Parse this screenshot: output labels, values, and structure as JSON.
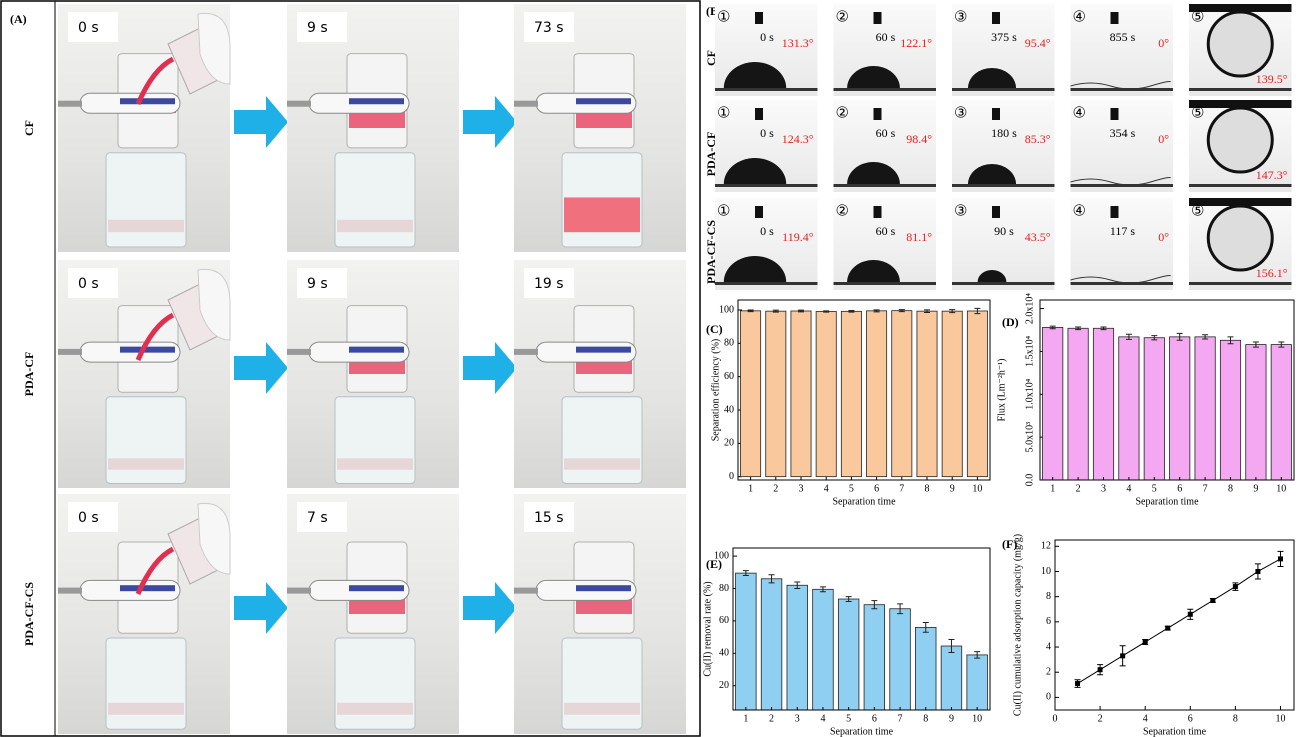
{
  "panel_a": {
    "label": "(A)",
    "rows": [
      {
        "name": "CF",
        "times": [
          "0 s",
          "9 s",
          "73 s"
        ]
      },
      {
        "name": "PDA-CF",
        "times": [
          "0 s",
          "9 s",
          "19 s"
        ]
      },
      {
        "name": "PDA-CF-CS",
        "times": [
          "0 s",
          "7 s",
          "15 s"
        ]
      }
    ]
  },
  "panel_b": {
    "label": "(B)",
    "rows": [
      {
        "name": "CF",
        "cells": [
          {
            "step": "①",
            "time": "0 s",
            "angle": "131.3°"
          },
          {
            "step": "②",
            "time": "60 s",
            "angle": "122.1°"
          },
          {
            "step": "③",
            "time": "375 s",
            "angle": "95.4°"
          },
          {
            "step": "④",
            "time": "855 s",
            "angle": "0°"
          },
          {
            "step": "⑤",
            "angle": "139.5°"
          }
        ]
      },
      {
        "name": "PDA-CF",
        "cells": [
          {
            "step": "①",
            "time": "0 s",
            "angle": "124.3°"
          },
          {
            "step": "②",
            "time": "60 s",
            "angle": "98.4°"
          },
          {
            "step": "③",
            "time": "180 s",
            "angle": "85.3°"
          },
          {
            "step": "④",
            "time": "354 s",
            "angle": "0°"
          },
          {
            "step": "⑤",
            "angle": "147.3°"
          }
        ]
      },
      {
        "name": "PDA-CF-CS",
        "cells": [
          {
            "step": "①",
            "time": "0 s",
            "angle": "119.4°"
          },
          {
            "step": "②",
            "time": "60 s",
            "angle": "81.1°"
          },
          {
            "step": "③",
            "time": "90 s",
            "angle": "43.5°"
          },
          {
            "step": "④",
            "time": "117 s",
            "angle": "0°"
          },
          {
            "step": "⑤",
            "angle": "156.1°"
          }
        ]
      }
    ]
  },
  "chart_data": [
    {
      "type": "bar",
      "label": "(C)",
      "x_label": "Separation time",
      "y_label": "Separation efficiency (%)",
      "categories": [
        "1",
        "2",
        "3",
        "4",
        "5",
        "6",
        "7",
        "8",
        "9",
        "10"
      ],
      "values": [
        99.5,
        99.3,
        99.4,
        99.1,
        99.2,
        99.5,
        99.6,
        99.3,
        99.3,
        99.4
      ],
      "errors": [
        0.5,
        0.6,
        0.5,
        0.4,
        0.5,
        0.6,
        0.6,
        0.8,
        0.9,
        1.6
      ],
      "color": "#f9c89c",
      "ylim": [
        -2,
        106
      ],
      "yticks": [
        0,
        20,
        40,
        60,
        80,
        100
      ]
    },
    {
      "type": "bar",
      "label": "(D)",
      "x_label": "Separation time",
      "y_label": "Flux (Lm⁻²h⁻¹)",
      "categories": [
        "1",
        "2",
        "3",
        "4",
        "5",
        "6",
        "7",
        "8",
        "9",
        "10"
      ],
      "values": [
        17800,
        17700,
        17700,
        16700,
        16600,
        16700,
        16700,
        16300,
        15800,
        15800
      ],
      "errors": [
        150,
        150,
        150,
        300,
        250,
        400,
        250,
        400,
        300,
        300
      ],
      "color": "#f5a8f2",
      "ylim": [
        0,
        21000
      ],
      "yticks": [
        {
          "value": 0,
          "label": "0.0"
        },
        {
          "value": 5000,
          "label": "5.0x10³"
        },
        {
          "value": 10000,
          "label": "1.0x10⁴"
        },
        {
          "value": 15000,
          "label": "1.5x10⁴"
        },
        {
          "value": 20000,
          "label": "2.0x10⁴"
        }
      ]
    },
    {
      "type": "bar",
      "label": "(E)",
      "x_label": "Separation time",
      "y_label": "Cu(II) removal rate (%)",
      "categories": [
        "1",
        "2",
        "3",
        "4",
        "5",
        "6",
        "7",
        "8",
        "9",
        "10"
      ],
      "values": [
        89.5,
        86,
        82,
        79.5,
        73.5,
        70,
        67.5,
        56,
        44.5,
        39
      ],
      "errors": [
        1.5,
        2.5,
        2,
        1.5,
        1.5,
        2.5,
        3,
        3,
        4,
        2
      ],
      "color": "#8fd0f2",
      "ylim": [
        5,
        105
      ],
      "yticks": [
        20,
        40,
        60,
        80,
        100
      ]
    },
    {
      "type": "line",
      "label": "(F)",
      "x_label": "Separation time",
      "y_label": "Cu(II) cumulative adsorption capacity (mg/g)",
      "x": [
        1,
        2,
        3,
        4,
        5,
        6,
        7,
        8,
        9,
        10
      ],
      "values": [
        1.1,
        2.2,
        3.3,
        4.4,
        5.5,
        6.6,
        7.7,
        8.8,
        10,
        11
      ],
      "errors": [
        0.3,
        0.4,
        0.8,
        0.2,
        0.15,
        0.4,
        0.15,
        0.3,
        0.6,
        0.6
      ],
      "color": "#000000",
      "xlim": [
        0,
        10.6
      ],
      "xticks": [
        0,
        2,
        4,
        6,
        8,
        10
      ],
      "ylim": [
        -1,
        12.5
      ],
      "yticks": [
        0,
        2,
        4,
        6,
        8,
        10,
        12
      ]
    }
  ]
}
